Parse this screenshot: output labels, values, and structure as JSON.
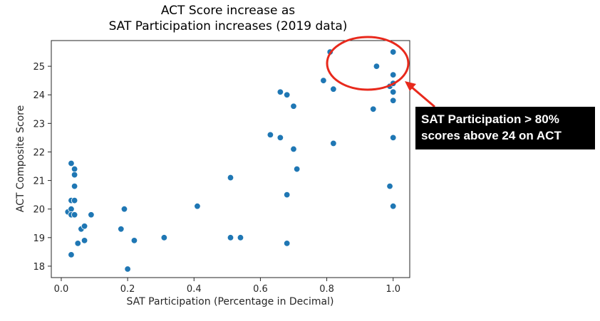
{
  "chart_data": {
    "type": "scatter",
    "title": [
      "ACT Score increase as",
      "SAT Participation increases (2019 data)"
    ],
    "xlabel": "SAT Participation (Percentage in Decimal)",
    "ylabel": "ACT Composite Score",
    "xlim": [
      -0.03,
      1.05
    ],
    "ylim": [
      17.6,
      25.9
    ],
    "xticks": [
      0.0,
      0.2,
      0.4,
      0.6,
      0.8,
      1.0
    ],
    "xtick_labels": [
      "0.0",
      "0.2",
      "0.4",
      "0.6",
      "0.8",
      "1.0"
    ],
    "yticks": [
      18,
      19,
      20,
      21,
      22,
      23,
      24,
      25
    ],
    "ytick_labels": [
      "18",
      "19",
      "20",
      "21",
      "22",
      "23",
      "24",
      "25"
    ],
    "grid": false,
    "marker_color": "#1f77b4",
    "points": [
      {
        "x": 0.02,
        "y": 19.9
      },
      {
        "x": 0.03,
        "y": 21.6
      },
      {
        "x": 0.04,
        "y": 21.4
      },
      {
        "x": 0.04,
        "y": 21.2
      },
      {
        "x": 0.04,
        "y": 20.8
      },
      {
        "x": 0.03,
        "y": 20.3
      },
      {
        "x": 0.04,
        "y": 20.3
      },
      {
        "x": 0.03,
        "y": 20.0
      },
      {
        "x": 0.03,
        "y": 19.8
      },
      {
        "x": 0.04,
        "y": 19.8
      },
      {
        "x": 0.06,
        "y": 19.3
      },
      {
        "x": 0.07,
        "y": 19.4
      },
      {
        "x": 0.09,
        "y": 19.8
      },
      {
        "x": 0.07,
        "y": 18.9
      },
      {
        "x": 0.05,
        "y": 18.8
      },
      {
        "x": 0.03,
        "y": 18.4
      },
      {
        "x": 0.18,
        "y": 19.3
      },
      {
        "x": 0.19,
        "y": 20.0
      },
      {
        "x": 0.22,
        "y": 18.9
      },
      {
        "x": 0.2,
        "y": 17.9
      },
      {
        "x": 0.31,
        "y": 19.0
      },
      {
        "x": 0.41,
        "y": 20.1
      },
      {
        "x": 0.51,
        "y": 21.1
      },
      {
        "x": 0.51,
        "y": 19.0
      },
      {
        "x": 0.54,
        "y": 19.0
      },
      {
        "x": 0.63,
        "y": 22.6
      },
      {
        "x": 0.66,
        "y": 22.5
      },
      {
        "x": 0.66,
        "y": 24.1
      },
      {
        "x": 0.68,
        "y": 24.0
      },
      {
        "x": 0.7,
        "y": 23.6
      },
      {
        "x": 0.7,
        "y": 22.1
      },
      {
        "x": 0.71,
        "y": 21.4
      },
      {
        "x": 0.68,
        "y": 20.5
      },
      {
        "x": 0.68,
        "y": 18.8
      },
      {
        "x": 0.79,
        "y": 24.5
      },
      {
        "x": 0.81,
        "y": 25.5
      },
      {
        "x": 0.82,
        "y": 24.2
      },
      {
        "x": 0.82,
        "y": 22.3
      },
      {
        "x": 0.94,
        "y": 23.5
      },
      {
        "x": 0.95,
        "y": 25.0
      },
      {
        "x": 0.99,
        "y": 24.3
      },
      {
        "x": 1.0,
        "y": 25.5
      },
      {
        "x": 1.0,
        "y": 24.7
      },
      {
        "x": 1.0,
        "y": 24.4
      },
      {
        "x": 1.0,
        "y": 24.1
      },
      {
        "x": 1.0,
        "y": 23.8
      },
      {
        "x": 1.0,
        "y": 22.5
      },
      {
        "x": 0.99,
        "y": 20.8
      },
      {
        "x": 1.0,
        "y": 20.1
      }
    ],
    "annotation": {
      "lines": [
        "SAT Participation > 80%",
        "scores above 24 on ACT"
      ],
      "highlight_color": "#e8291c",
      "box_color": "#000000",
      "text_color": "#ffffff"
    }
  }
}
